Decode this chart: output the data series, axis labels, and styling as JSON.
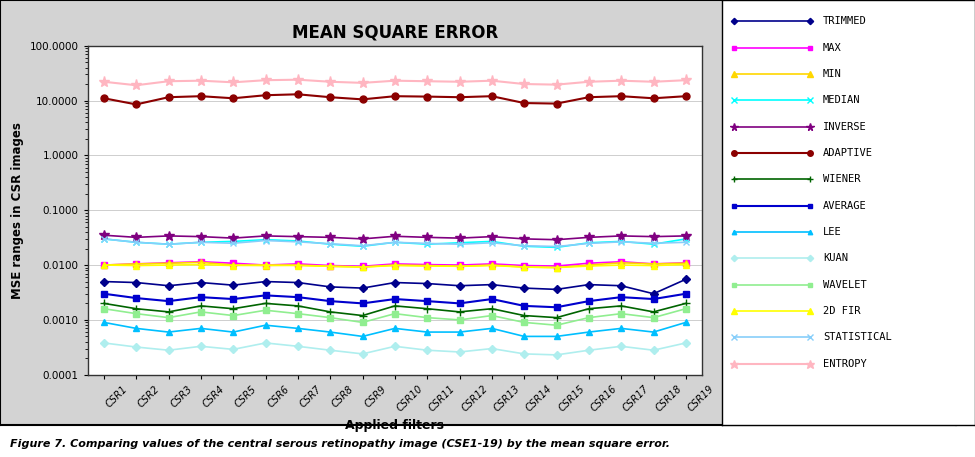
{
  "title": "MEAN SQUARE ERROR",
  "xlabel": "Applied filters",
  "ylabel": "MSE ranges in CSR images",
  "categories": [
    "CSR1",
    "CSR2",
    "CSR3",
    "CSR4",
    "CSR5",
    "CSR6",
    "CSR7",
    "CSR8",
    "CSR9",
    "CSR10",
    "CSR11",
    "CSR12",
    "CSR13",
    "CSR14",
    "CSR15",
    "CSR16",
    "CSR17",
    "CSR18",
    "CSR19"
  ],
  "ylim_log": [
    0.0001,
    100.0
  ],
  "yticks": [
    0.0001,
    0.001,
    0.01,
    0.1,
    1.0,
    10.0,
    100.0
  ],
  "ytick_labels": [
    "0.0001",
    "0.0010",
    "0.0100",
    "0.1000",
    "1.0000",
    "10.0000",
    "100.0000"
  ],
  "series": [
    {
      "name": "TRIMMED",
      "color": "#00008B",
      "marker": "D",
      "ms": 4,
      "lw": 1.2,
      "values": [
        0.005,
        0.0048,
        0.0042,
        0.0048,
        0.0043,
        0.005,
        0.0048,
        0.004,
        0.0038,
        0.0048,
        0.0046,
        0.0042,
        0.0044,
        0.0038,
        0.0036,
        0.0044,
        0.0042,
        0.003,
        0.0055
      ]
    },
    {
      "name": "MAX",
      "color": "#FF00FF",
      "marker": "s",
      "ms": 4,
      "lw": 1.2,
      "values": [
        0.01,
        0.0105,
        0.011,
        0.0115,
        0.0108,
        0.01,
        0.0105,
        0.0098,
        0.0095,
        0.0105,
        0.0102,
        0.01,
        0.0105,
        0.0098,
        0.0096,
        0.0108,
        0.0115,
        0.0105,
        0.011
      ]
    },
    {
      "name": "MIN",
      "color": "#FFD700",
      "marker": "^",
      "ms": 5,
      "lw": 1.2,
      "values": [
        0.01,
        0.0105,
        0.0108,
        0.0112,
        0.01,
        0.0098,
        0.01,
        0.0095,
        0.0092,
        0.01,
        0.0098,
        0.0095,
        0.01,
        0.0092,
        0.009,
        0.01,
        0.011,
        0.0105,
        0.0108
      ]
    },
    {
      "name": "MEDIAN",
      "color": "#00FFFF",
      "marker": "x",
      "ms": 5,
      "lw": 1.2,
      "values": [
        0.03,
        0.026,
        0.024,
        0.026,
        0.027,
        0.029,
        0.0275,
        0.024,
        0.022,
        0.026,
        0.024,
        0.0255,
        0.027,
        0.022,
        0.021,
        0.0255,
        0.027,
        0.024,
        0.03
      ]
    },
    {
      "name": "INVERSE",
      "color": "#800080",
      "marker": "*",
      "ms": 7,
      "lw": 1.2,
      "values": [
        0.035,
        0.032,
        0.034,
        0.033,
        0.031,
        0.034,
        0.033,
        0.032,
        0.03,
        0.0335,
        0.032,
        0.031,
        0.033,
        0.03,
        0.029,
        0.032,
        0.034,
        0.033,
        0.034
      ]
    },
    {
      "name": "ADAPTIVE",
      "color": "#8B0000",
      "marker": "o",
      "ms": 5,
      "lw": 1.5,
      "values": [
        11.0,
        8.5,
        11.5,
        12.0,
        11.0,
        12.5,
        13.0,
        11.5,
        10.5,
        12.0,
        11.8,
        11.5,
        12.0,
        9.0,
        8.8,
        11.5,
        12.0,
        11.0,
        12.0
      ]
    },
    {
      "name": "WIENER",
      "color": "#006400",
      "marker": "+",
      "ms": 6,
      "lw": 1.2,
      "values": [
        0.002,
        0.0016,
        0.0014,
        0.0018,
        0.0016,
        0.002,
        0.0018,
        0.0014,
        0.0012,
        0.0018,
        0.0016,
        0.0014,
        0.0016,
        0.0012,
        0.0011,
        0.0016,
        0.0018,
        0.0014,
        0.002
      ]
    },
    {
      "name": "AVERAGE",
      "color": "#0000CD",
      "marker": "s",
      "ms": 4,
      "lw": 1.5,
      "values": [
        0.003,
        0.0025,
        0.0022,
        0.0026,
        0.0024,
        0.0028,
        0.0026,
        0.0022,
        0.002,
        0.0024,
        0.0022,
        0.002,
        0.0024,
        0.0018,
        0.0017,
        0.0022,
        0.0026,
        0.0024,
        0.003
      ]
    },
    {
      "name": "LEE",
      "color": "#00BFFF",
      "marker": "^",
      "ms": 4,
      "lw": 1.2,
      "values": [
        0.0009,
        0.0007,
        0.0006,
        0.0007,
        0.0006,
        0.0008,
        0.0007,
        0.0006,
        0.0005,
        0.0007,
        0.0006,
        0.0006,
        0.0007,
        0.0005,
        0.0005,
        0.0006,
        0.0007,
        0.0006,
        0.0009
      ]
    },
    {
      "name": "KUAN",
      "color": "#AFEEEE",
      "marker": "D",
      "ms": 4,
      "lw": 1.2,
      "values": [
        0.00038,
        0.00032,
        0.00028,
        0.00033,
        0.00029,
        0.00038,
        0.00033,
        0.00028,
        0.00024,
        0.00033,
        0.00028,
        0.00026,
        0.0003,
        0.00024,
        0.00023,
        0.00028,
        0.00033,
        0.00028,
        0.00038
      ]
    },
    {
      "name": "WAVELET",
      "color": "#90EE90",
      "marker": "s",
      "ms": 4,
      "lw": 1.2,
      "values": [
        0.0016,
        0.0013,
        0.0011,
        0.0014,
        0.0012,
        0.0015,
        0.0013,
        0.0011,
        0.0009,
        0.0013,
        0.0011,
        0.001,
        0.0012,
        0.0009,
        0.0008,
        0.0011,
        0.0013,
        0.0011,
        0.0016
      ]
    },
    {
      "name": "2D FIR",
      "color": "#FFFF00",
      "marker": "^",
      "ms": 5,
      "lw": 1.2,
      "values": [
        0.01,
        0.0098,
        0.01,
        0.0102,
        0.0098,
        0.01,
        0.0098,
        0.0095,
        0.0092,
        0.0098,
        0.0096,
        0.0095,
        0.0098,
        0.0092,
        0.009,
        0.0096,
        0.01,
        0.0098,
        0.0102
      ]
    },
    {
      "name": "STATISTICAL",
      "color": "#87CEFA",
      "marker": "x",
      "ms": 5,
      "lw": 1.2,
      "values": [
        0.03,
        0.026,
        0.024,
        0.026,
        0.025,
        0.028,
        0.0265,
        0.0245,
        0.0225,
        0.026,
        0.0248,
        0.024,
        0.0255,
        0.0225,
        0.0218,
        0.0248,
        0.0265,
        0.025,
        0.026
      ]
    },
    {
      "name": "ENTROPY",
      "color": "#FFB6C1",
      "marker": "*",
      "ms": 8,
      "lw": 1.5,
      "values": [
        22.0,
        19.0,
        22.5,
        23.0,
        21.5,
        23.5,
        24.0,
        22.0,
        21.0,
        23.0,
        22.5,
        22.0,
        23.0,
        20.0,
        19.5,
        22.0,
        23.0,
        22.0,
        23.5
      ]
    }
  ],
  "caption": "Figure 7. Comparing values of the central serous retinopathy image (CSE1-19) by the mean square error.",
  "fig_bg": "#ffffff",
  "plot_bg": "#ffffff",
  "outer_bg": "#d3d3d3"
}
